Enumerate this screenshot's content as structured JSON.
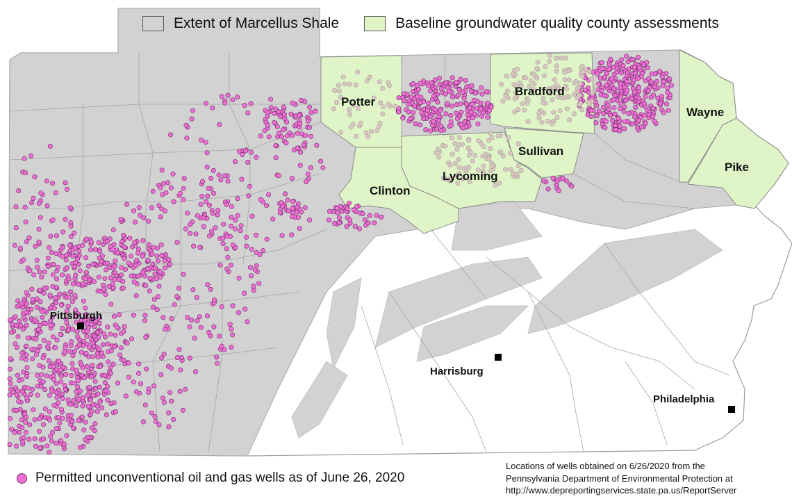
{
  "legend": {
    "marcellus_label": "Extent of Marcellus Shale",
    "marcellus_color": "#d2d2d2",
    "baseline_label": "Baseline groundwater quality county assessments",
    "baseline_color": "#dff5c7",
    "wells_label": "Permitted unconventional oil and gas wells as of June 26, 2020",
    "wells_color": "#ee6fd4"
  },
  "source_note": {
    "line1": "Locations of wells obtained on 6/26/2020 from the",
    "line2": "Pennsylvania Department of Environmental Protection at",
    "line3": "http://www.depreportingservices.state.pa.us/ReportServer"
  },
  "counties": {
    "potter": "Potter",
    "bradford": "Bradford",
    "wayne": "Wayne",
    "sullivan": "Sullivan",
    "pike": "Pike",
    "lycoming": "Lycoming",
    "clinton": "Clinton"
  },
  "cities": {
    "pittsburgh": "Pittsburgh",
    "harrisburg": "Harrisburg",
    "philadelphia": "Philadelphia"
  }
}
